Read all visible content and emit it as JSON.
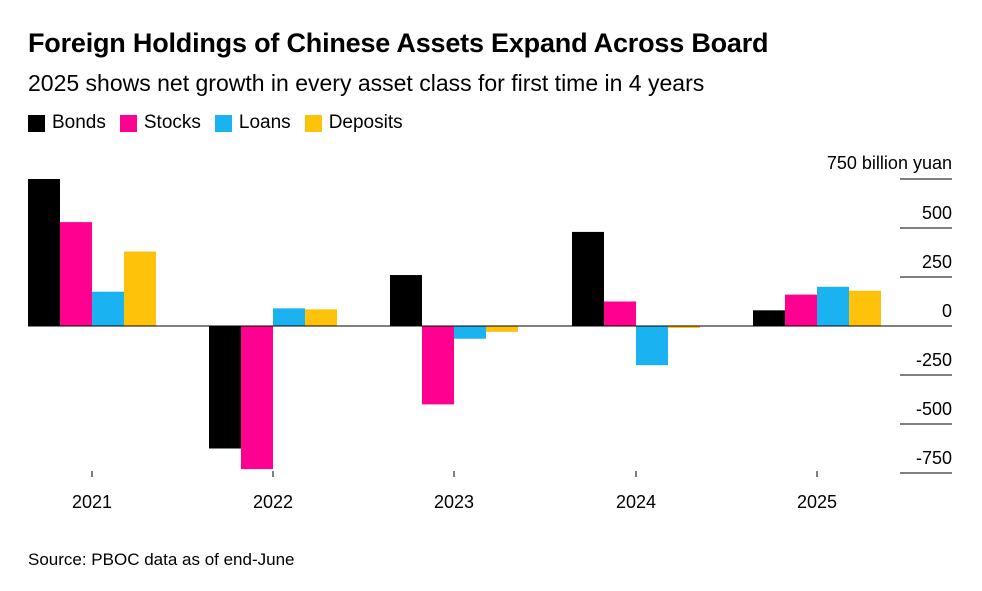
{
  "chart_data": {
    "type": "bar",
    "title": "Foreign Holdings of Chinese Assets Expand Across Board",
    "subtitle": "2025 shows net growth in every asset class for first time in 4 years",
    "categories": [
      "2021",
      "2022",
      "2023",
      "2024",
      "2025"
    ],
    "series": [
      {
        "name": "Bonds",
        "color": "#000000",
        "values": [
          750,
          -625,
          260,
          480,
          80
        ]
      },
      {
        "name": "Stocks",
        "color": "#ff0090",
        "values": [
          530,
          -730,
          -400,
          125,
          160
        ]
      },
      {
        "name": "Loans",
        "color": "#1ab2f0",
        "values": [
          175,
          90,
          -65,
          -200,
          200
        ]
      },
      {
        "name": "Deposits",
        "color": "#ffc20a",
        "values": [
          380,
          85,
          -30,
          -10,
          180
        ]
      }
    ],
    "y_unit_label": "750 billion yuan",
    "y_ticks": [
      750,
      500,
      250,
      0,
      -250,
      -500,
      -750
    ],
    "y_tick_labels": [
      "",
      "500",
      "250",
      "0",
      "-250",
      "-500",
      "-750"
    ],
    "ylim": [
      -780,
      760
    ],
    "legend_position": "top-left",
    "grid": false,
    "source": "Source: PBOC data as of end-June"
  }
}
